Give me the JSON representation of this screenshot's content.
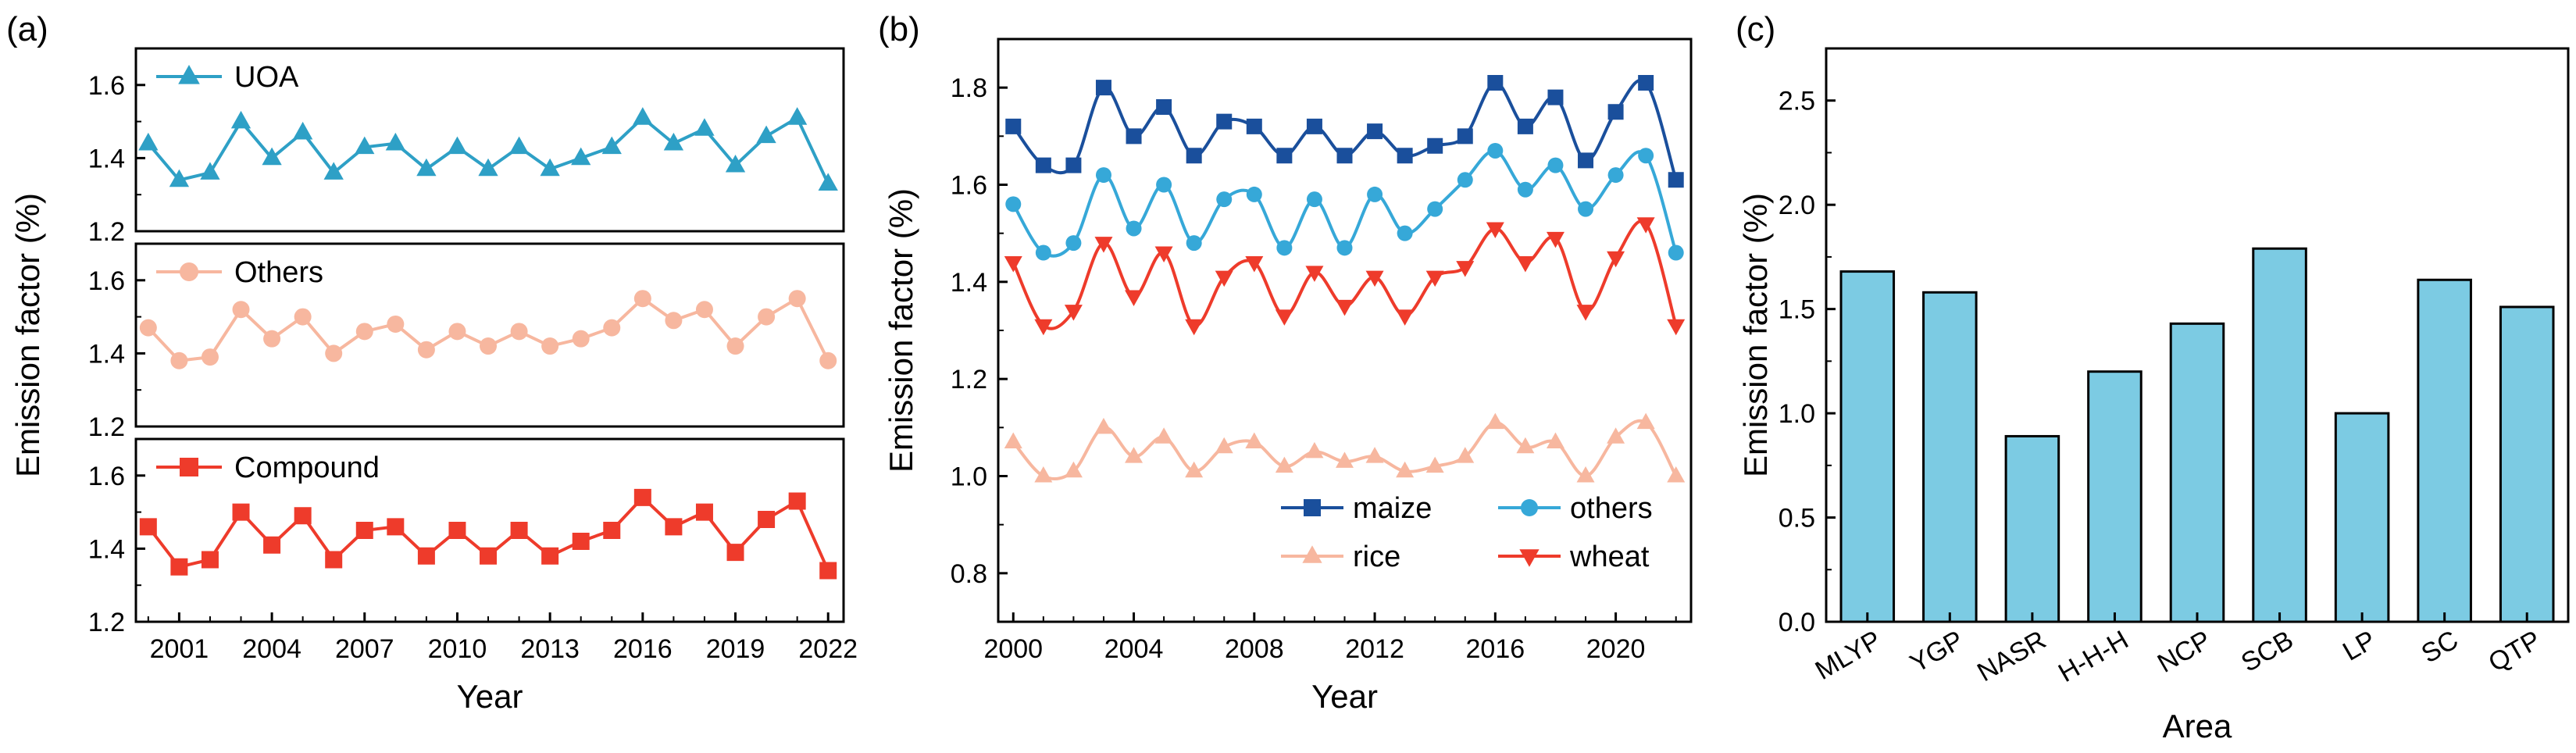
{
  "chart_data": [
    {
      "panel": "(a)",
      "type": "line",
      "ylabel": "Emission factor (%)",
      "xlabel": "Year",
      "xticks": [
        2001,
        2004,
        2007,
        2010,
        2013,
        2016,
        2019,
        2022
      ],
      "x": [
        2000,
        2001,
        2002,
        2003,
        2004,
        2005,
        2006,
        2007,
        2008,
        2009,
        2010,
        2011,
        2012,
        2013,
        2014,
        2015,
        2016,
        2017,
        2018,
        2019,
        2020,
        2021,
        2022
      ],
      "subplots": [
        {
          "name": "UOA",
          "color": "#2ea0c6",
          "marker": "triangle",
          "ylim": [
            1.2,
            1.7
          ],
          "yticks": [
            "1.2",
            "1.4",
            "1.6"
          ],
          "values": [
            1.44,
            1.34,
            1.36,
            1.5,
            1.4,
            1.47,
            1.36,
            1.43,
            1.44,
            1.37,
            1.43,
            1.37,
            1.43,
            1.37,
            1.4,
            1.43,
            1.51,
            1.44,
            1.48,
            1.38,
            1.46,
            1.51,
            1.33
          ]
        },
        {
          "name": "Others",
          "color": "#f7b79f",
          "marker": "circle",
          "ylim": [
            1.2,
            1.7
          ],
          "yticks": [
            "1.2",
            "1.4",
            "1.6"
          ],
          "values": [
            1.47,
            1.38,
            1.39,
            1.52,
            1.44,
            1.5,
            1.4,
            1.46,
            1.48,
            1.41,
            1.46,
            1.42,
            1.46,
            1.42,
            1.44,
            1.47,
            1.55,
            1.49,
            1.52,
            1.42,
            1.5,
            1.55,
            1.38
          ]
        },
        {
          "name": "Compound",
          "color": "#ee3b2b",
          "marker": "square",
          "ylim": [
            1.2,
            1.7
          ],
          "yticks": [
            "1.2",
            "1.4",
            "1.6"
          ],
          "values": [
            1.46,
            1.35,
            1.37,
            1.5,
            1.41,
            1.49,
            1.37,
            1.45,
            1.46,
            1.38,
            1.45,
            1.38,
            1.45,
            1.38,
            1.42,
            1.45,
            1.54,
            1.46,
            1.5,
            1.39,
            1.48,
            1.53,
            1.34
          ]
        }
      ]
    },
    {
      "panel": "(b)",
      "type": "line",
      "ylabel": "Emission factor (%)",
      "xlabel": "Year",
      "xlim": [
        1999.5,
        2022.5
      ],
      "xticks": [
        2000,
        2004,
        2008,
        2012,
        2016,
        2020
      ],
      "ylim": [
        0.7,
        1.9
      ],
      "yticks": [
        "0.8",
        "1.0",
        "1.2",
        "1.4",
        "1.6",
        "1.8"
      ],
      "x": [
        2000,
        2001,
        2002,
        2003,
        2004,
        2005,
        2006,
        2007,
        2008,
        2009,
        2010,
        2011,
        2012,
        2013,
        2014,
        2015,
        2016,
        2017,
        2018,
        2019,
        2020,
        2021,
        2022
      ],
      "series": [
        {
          "name": "maize",
          "color": "#1a4f9c",
          "marker": "square",
          "values": [
            1.72,
            1.64,
            1.64,
            1.8,
            1.7,
            1.76,
            1.66,
            1.73,
            1.72,
            1.66,
            1.72,
            1.66,
            1.71,
            1.66,
            1.68,
            1.7,
            1.81,
            1.72,
            1.78,
            1.65,
            1.75,
            1.81,
            1.61
          ]
        },
        {
          "name": "others",
          "color": "#36a8d8",
          "marker": "circle",
          "values": [
            1.56,
            1.46,
            1.48,
            1.62,
            1.51,
            1.6,
            1.48,
            1.57,
            1.58,
            1.47,
            1.57,
            1.47,
            1.58,
            1.5,
            1.55,
            1.61,
            1.67,
            1.59,
            1.64,
            1.55,
            1.62,
            1.66,
            1.46
          ]
        },
        {
          "name": "rice",
          "color": "#f7b79f",
          "marker": "triangle",
          "values": [
            1.07,
            1.0,
            1.01,
            1.1,
            1.04,
            1.08,
            1.01,
            1.06,
            1.07,
            1.02,
            1.05,
            1.03,
            1.04,
            1.01,
            1.02,
            1.04,
            1.11,
            1.06,
            1.07,
            1.0,
            1.08,
            1.11,
            1.0
          ]
        },
        {
          "name": "wheat",
          "color": "#ee3b2b",
          "marker": "triangle-down",
          "values": [
            1.44,
            1.31,
            1.34,
            1.48,
            1.37,
            1.46,
            1.31,
            1.41,
            1.44,
            1.33,
            1.42,
            1.35,
            1.41,
            1.33,
            1.41,
            1.43,
            1.51,
            1.44,
            1.49,
            1.34,
            1.45,
            1.52,
            1.31
          ]
        }
      ]
    },
    {
      "panel": "(c)",
      "type": "bar",
      "ylabel": "Emission factor (%)",
      "xlabel": "Area",
      "ylim": [
        0.0,
        2.75
      ],
      "yticks": [
        "0.0",
        "0.5",
        "1.0",
        "1.5",
        "2.0",
        "2.5"
      ],
      "categories": [
        "MLYP",
        "YGP",
        "NASR",
        "H-H-H",
        "NCP",
        "SCB",
        "LP",
        "SC",
        "QTP"
      ],
      "values": [
        1.68,
        1.58,
        0.89,
        1.2,
        1.43,
        1.79,
        1.0,
        1.64,
        1.51
      ],
      "color": "#7ccbe3"
    }
  ]
}
